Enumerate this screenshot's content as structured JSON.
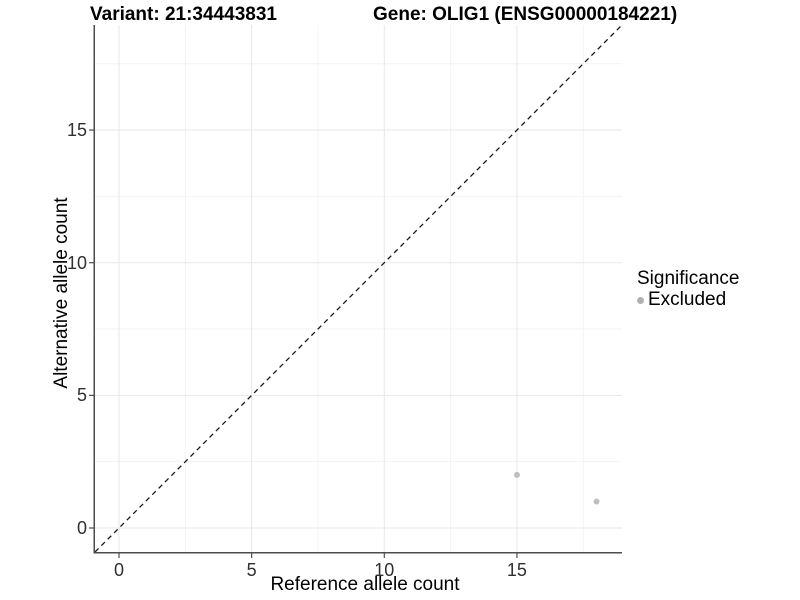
{
  "header": {
    "variant_title": "Variant: 21:34443831",
    "gene_title": "Gene: OLIG1 (ENSG00000184221)"
  },
  "chart_data": {
    "type": "scatter",
    "title_left": "Variant: 21:34443831",
    "title_right": "Gene: OLIG1 (ENSG00000184221)",
    "xlabel": "Reference allele count",
    "ylabel": "Alternative allele count",
    "xlim": [
      -0.905,
      18.96
    ],
    "ylim": [
      -0.905,
      18.96
    ],
    "xticks": [
      0,
      5,
      10,
      15
    ],
    "yticks": [
      0,
      5,
      10,
      15
    ],
    "xminor": [
      2.5,
      7.5,
      12.5,
      17.5
    ],
    "yminor": [
      2.5,
      7.5,
      12.5,
      17.5
    ],
    "grid": true,
    "identity_line": {
      "style": "dashed",
      "slope": 1,
      "intercept": 0
    },
    "series": [
      {
        "name": "Excluded",
        "points": [
          {
            "x": 15,
            "y": 2
          },
          {
            "x": 18,
            "y": 1
          }
        ]
      }
    ],
    "legend": {
      "title": "Significance",
      "position": "right",
      "entries": [
        {
          "label": "Excluded"
        }
      ]
    }
  },
  "colors": {
    "point": "#bfbfbf",
    "legend_marker": "#b0b0b0",
    "grid_major": "#e7e7e7",
    "grid_minor": "#f3f3f3",
    "axis_line": "#4d4d4d",
    "identity_line": "#1a1a1a",
    "tick_text": "#303030"
  }
}
